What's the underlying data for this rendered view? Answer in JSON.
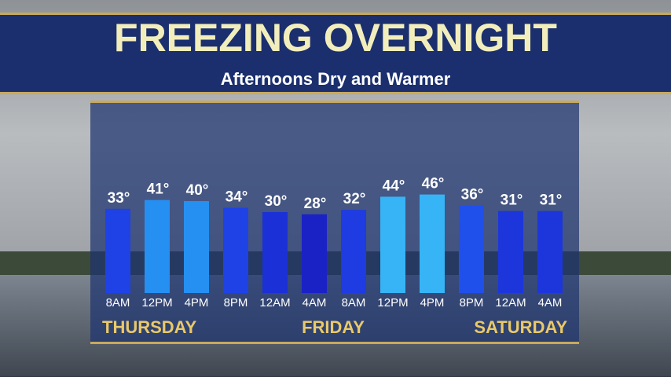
{
  "chart_data": {
    "type": "bar",
    "title": "FREEZING OVERNIGHT",
    "subtitle": "Afternoons Dry and Warmer",
    "categories": [
      "8AM",
      "12PM",
      "4PM",
      "8PM",
      "12AM",
      "4AM",
      "8AM",
      "12PM",
      "4PM",
      "8PM",
      "12AM",
      "4AM"
    ],
    "values": [
      33,
      41,
      40,
      34,
      30,
      28,
      32,
      44,
      46,
      36,
      31,
      31
    ],
    "value_labels": [
      "33°",
      "41°",
      "40°",
      "34°",
      "30°",
      "28°",
      "32°",
      "44°",
      "46°",
      "36°",
      "31°",
      "31°"
    ],
    "colors": [
      "#1f42e6",
      "#2690f2",
      "#2690f2",
      "#1f42e6",
      "#1b30d6",
      "#1a22c6",
      "#1f3be2",
      "#37b4f6",
      "#37b4f6",
      "#2050ec",
      "#1c36dc",
      "#1c36dc"
    ],
    "day_labels": [
      "THURSDAY",
      "FRIDAY",
      "SATURDAY"
    ]
  }
}
